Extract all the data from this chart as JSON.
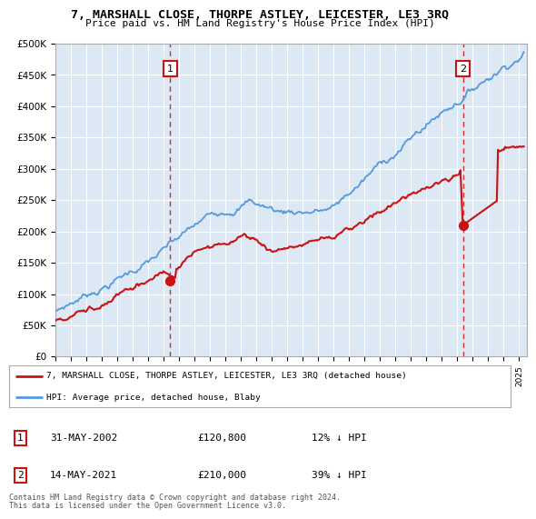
{
  "title": "7, MARSHALL CLOSE, THORPE ASTLEY, LEICESTER, LE3 3RQ",
  "subtitle": "Price paid vs. HM Land Registry's House Price Index (HPI)",
  "ylabel_ticks": [
    "£0",
    "£50K",
    "£100K",
    "£150K",
    "£200K",
    "£250K",
    "£300K",
    "£350K",
    "£400K",
    "£450K",
    "£500K"
  ],
  "ytick_values": [
    0,
    50000,
    100000,
    150000,
    200000,
    250000,
    300000,
    350000,
    400000,
    450000,
    500000
  ],
  "ylim": [
    0,
    500000
  ],
  "xlim_start": 1995.0,
  "xlim_end": 2025.5,
  "hpi_color": "#5599dd",
  "price_color": "#cc1111",
  "marker1_year": 2002.42,
  "marker1_value": 120800,
  "marker2_year": 2021.37,
  "marker2_value": 210000,
  "legend_line1": "7, MARSHALL CLOSE, THORPE ASTLEY, LEICESTER, LE3 3RQ (detached house)",
  "legend_line2": "HPI: Average price, detached house, Blaby",
  "table_row1": [
    "1",
    "31-MAY-2002",
    "£120,800",
    "12% ↓ HPI"
  ],
  "table_row2": [
    "2",
    "14-MAY-2021",
    "£210,000",
    "39% ↓ HPI"
  ],
  "footer1": "Contains HM Land Registry data © Crown copyright and database right 2024.",
  "footer2": "This data is licensed under the Open Government Licence v3.0.",
  "dashed_line1_x": 2002.42,
  "dashed_line2_x": 2021.37,
  "plot_bg_color": "#dde8f5",
  "background_color": "#ffffff",
  "grid_color": "#ffffff"
}
